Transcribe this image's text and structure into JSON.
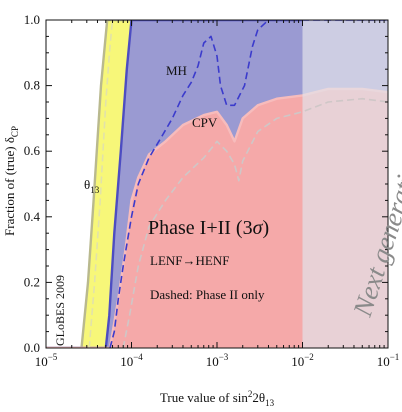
{
  "chart_data": {
    "type": "area",
    "xscale": "log",
    "xlim": [
      1e-05,
      0.1
    ],
    "ylim": [
      0.0,
      1.0
    ],
    "xlabel": "True value of sin²2θ₁₃",
    "ylabel": "Fraction of (true) δCP",
    "x_ticks": [
      {
        "value": 1e-05,
        "base": "10",
        "exp": "−5"
      },
      {
        "value": 0.0001,
        "base": "10",
        "exp": "−4"
      },
      {
        "value": 0.001,
        "base": "10",
        "exp": "−3"
      },
      {
        "value": 0.01,
        "base": "10",
        "exp": "−2"
      },
      {
        "value": 0.1,
        "base": "10",
        "exp": "−1"
      }
    ],
    "y_ticks": [
      {
        "value": 0.0,
        "label": "0.0"
      },
      {
        "value": 0.2,
        "label": "0.2"
      },
      {
        "value": 0.4,
        "label": "0.4"
      },
      {
        "value": 0.6,
        "label": "0.6"
      },
      {
        "value": 0.8,
        "label": "0.8"
      },
      {
        "value": 1.0,
        "label": "1.0"
      }
    ],
    "grid": false,
    "series": [
      {
        "name": "θ13",
        "style": "filled",
        "fill": "#f7f779",
        "edge": "#b9b98e",
        "points": [
          [
            1e-05,
            0.0
          ],
          [
            2.6e-05,
            0.0
          ],
          [
            3.1e-05,
            0.2
          ],
          [
            3.6e-05,
            0.45
          ],
          [
            4.4e-05,
            0.8
          ],
          [
            5.2e-05,
            1.0
          ],
          [
            0.1,
            1.0
          ]
        ]
      },
      {
        "name": "MH",
        "style": "filled",
        "fill": "#9a9ad2",
        "edge": "#4d4dc2",
        "points": [
          [
            1e-05,
            0.0
          ],
          [
            5e-05,
            0.0
          ],
          [
            5.5e-05,
            0.1
          ],
          [
            6.3e-05,
            0.35
          ],
          [
            7.5e-05,
            0.6
          ],
          [
            8.8e-05,
            0.85
          ],
          [
            0.0001,
            1.0
          ],
          [
            0.1,
            1.0
          ]
        ]
      },
      {
        "name": "CPV",
        "style": "filled",
        "fill": "#f5a9a9",
        "edge": "#f7bcbc",
        "points": [
          [
            1e-05,
            0.0
          ],
          [
            5.6e-05,
            0.0
          ],
          [
            7e-05,
            0.15
          ],
          [
            8.5e-05,
            0.3
          ],
          [
            0.0001,
            0.45
          ],
          [
            0.00012,
            0.52
          ],
          [
            0.00016,
            0.59
          ],
          [
            0.00025,
            0.63
          ],
          [
            0.0004,
            0.68
          ],
          [
            0.0007,
            0.71
          ],
          [
            0.001,
            0.72
          ],
          [
            0.0013,
            0.68
          ],
          [
            0.0016,
            0.63
          ],
          [
            0.002,
            0.7
          ],
          [
            0.003,
            0.74
          ],
          [
            0.005,
            0.76
          ],
          [
            0.01,
            0.77
          ],
          [
            0.02,
            0.79
          ],
          [
            0.05,
            0.79
          ],
          [
            0.1,
            0.78
          ]
        ]
      },
      {
        "name": "θ13 (Phase II only)",
        "style": "dashed",
        "stroke": "#e2e2aa",
        "points": [
          [
            3.2e-05,
            0.0
          ],
          [
            3.7e-05,
            0.2
          ],
          [
            4.3e-05,
            0.45
          ],
          [
            5e-05,
            0.75
          ],
          [
            5.6e-05,
            0.92
          ],
          [
            6e-05,
            1.0
          ]
        ]
      },
      {
        "name": "MH (Phase II only)",
        "style": "dashed",
        "stroke": "#3b3bcc",
        "points": [
          [
            5.6e-05,
            0.0
          ],
          [
            6.3e-05,
            0.05
          ],
          [
            7e-05,
            0.15
          ],
          [
            8e-05,
            0.25
          ],
          [
            9e-05,
            0.33
          ],
          [
            0.0001,
            0.4
          ],
          [
            0.00012,
            0.5
          ],
          [
            0.00016,
            0.58
          ],
          [
            0.00022,
            0.64
          ],
          [
            0.0003,
            0.7
          ],
          [
            0.0004,
            0.77
          ],
          [
            0.0005,
            0.81
          ],
          [
            0.0006,
            0.86
          ],
          [
            0.0007,
            0.93
          ],
          [
            0.00085,
            0.95
          ],
          [
            0.001,
            0.89
          ],
          [
            0.0011,
            0.8
          ],
          [
            0.0013,
            0.74
          ],
          [
            0.0016,
            0.74
          ],
          [
            0.0021,
            0.8
          ],
          [
            0.0026,
            0.92
          ],
          [
            0.003,
            0.97
          ],
          [
            0.004,
            1.0
          ],
          [
            0.1,
            1.0
          ]
        ]
      },
      {
        "name": "CPV (Phase II only)",
        "style": "dashed",
        "stroke": "#cfc7c7",
        "points": [
          [
            8e-05,
            0.0
          ],
          [
            9.5e-05,
            0.1
          ],
          [
            0.00012,
            0.25
          ],
          [
            0.00016,
            0.37
          ],
          [
            0.00025,
            0.45
          ],
          [
            0.0004,
            0.52
          ],
          [
            0.0007,
            0.58
          ],
          [
            0.001,
            0.63
          ],
          [
            0.0013,
            0.6
          ],
          [
            0.0016,
            0.56
          ],
          [
            0.0018,
            0.51
          ],
          [
            0.002,
            0.57
          ],
          [
            0.003,
            0.66
          ],
          [
            0.005,
            0.7
          ],
          [
            0.01,
            0.72
          ],
          [
            0.02,
            0.75
          ],
          [
            0.05,
            0.76
          ],
          [
            0.1,
            0.75
          ]
        ]
      }
    ],
    "excluded_region": {
      "x_from": 0.01,
      "x_to": 0.1,
      "fill": "#e2e2ea",
      "opacity": 0.7
    },
    "annotations": {
      "globes": "GLoBES 2009",
      "theta": "θ",
      "theta_sub": "13",
      "mh": "MH",
      "cpv": "CPV",
      "phase_main": "Phase I+II (3",
      "phase_sigma": "σ",
      "phase_close": ")",
      "lenf": "LENF→HENF",
      "dashed": "Dashed: Phase II only",
      "excluded": "Next generation excluded"
    },
    "colors": {
      "frame": "#111111",
      "excluded_text": "#8a8a8a"
    }
  }
}
